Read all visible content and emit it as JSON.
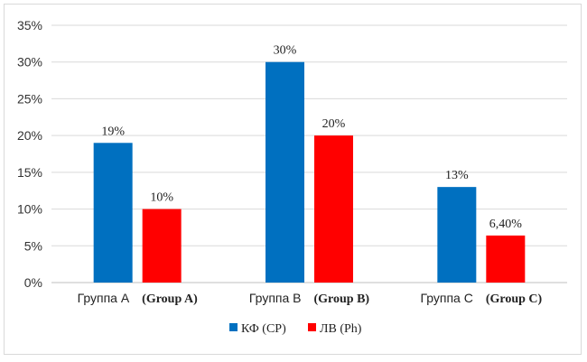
{
  "chart_data": {
    "type": "bar",
    "categories": [
      {
        "label": "Группа A",
        "en": "(Group A)"
      },
      {
        "label": "Группа B",
        "en": "(Group B)"
      },
      {
        "label": "Группа C",
        "en": "(Group C)"
      }
    ],
    "series": [
      {
        "name": "КФ (CP)",
        "color": "#0070C0",
        "values": [
          19,
          30,
          13
        ],
        "labels": [
          "19%",
          "30%",
          "13%"
        ]
      },
      {
        "name": "ЛВ (Ph)",
        "color": "#FF0000",
        "values": [
          10,
          20,
          6.4
        ],
        "labels": [
          "10%",
          "20%",
          "6,40%"
        ]
      }
    ],
    "ylim": [
      0,
      35
    ],
    "yticks": [
      "0%",
      "5%",
      "10%",
      "15%",
      "20%",
      "25%",
      "30%",
      "35%"
    ],
    "ytick_values": [
      0,
      5,
      10,
      15,
      20,
      25,
      30,
      35
    ],
    "grid": true,
    "legend_position": "bottom-center"
  }
}
